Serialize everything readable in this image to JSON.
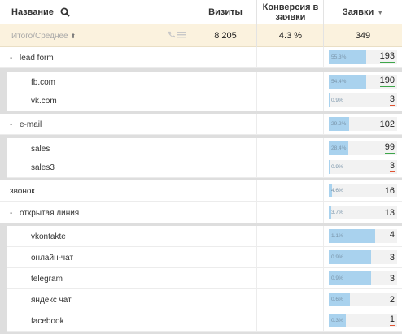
{
  "header": {
    "name_label": "Название",
    "visits_label": "Визиты",
    "conversion_label": "Конверсия в заявки",
    "leads_label": "Заявки"
  },
  "totals": {
    "label": "Итого/Среднее",
    "visits": "8 205",
    "conversion": "4.3 %",
    "leads": "349"
  },
  "rows": [
    {
      "label": "lead form",
      "expander": "-",
      "pct": "55.3%",
      "value": "193",
      "fill": 0.553,
      "underline": "green"
    },
    {
      "label": "fb.com",
      "expander": "",
      "pct": "54.4%",
      "value": "190",
      "fill": 0.544,
      "underline": "green"
    },
    {
      "label": "vk.com",
      "expander": "",
      "pct": "0.9%",
      "value": "3",
      "fill": 0.009,
      "underline": "red"
    },
    {
      "label": "e-mail",
      "expander": "-",
      "pct": "29.2%",
      "value": "102",
      "fill": 0.292,
      "underline": ""
    },
    {
      "label": "sales",
      "expander": "",
      "pct": "28.4%",
      "value": "99",
      "fill": 0.284,
      "underline": "green"
    },
    {
      "label": "sales3",
      "expander": "",
      "pct": "0.9%",
      "value": "3",
      "fill": 0.009,
      "underline": "red"
    },
    {
      "label": "звонок",
      "expander": "",
      "pct": "4.6%",
      "value": "16",
      "fill": 0.046,
      "underline": ""
    },
    {
      "label": "открытая линия",
      "expander": "-",
      "pct": "3.7%",
      "value": "13",
      "fill": 0.037,
      "underline": ""
    },
    {
      "label": "vkontakte",
      "expander": "",
      "pct": "1.1%",
      "value": "4",
      "fill": 0.68,
      "underline": "green"
    },
    {
      "label": "онлайн-чат",
      "expander": "",
      "pct": "0.9%",
      "value": "3",
      "fill": 0.62,
      "underline": ""
    },
    {
      "label": "telegram",
      "expander": "",
      "pct": "0.9%",
      "value": "3",
      "fill": 0.62,
      "underline": ""
    },
    {
      "label": "яндекс чат",
      "expander": "",
      "pct": "0.6%",
      "value": "2",
      "fill": 0.31,
      "underline": ""
    },
    {
      "label": "facebook",
      "expander": "",
      "pct": "0.3%",
      "value": "1",
      "fill": 0.25,
      "underline": "red"
    }
  ],
  "colors": {
    "bar_fill": "#a9d2ee",
    "totals_bg": "#fbf2de",
    "underline_green": "#3ea64a",
    "underline_red": "#e05533"
  }
}
